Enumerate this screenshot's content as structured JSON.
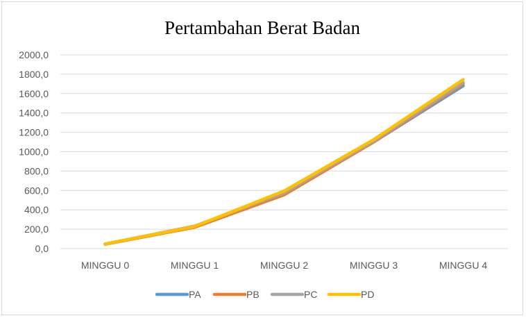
{
  "chart_data": {
    "type": "line",
    "title": "Pertambahan  Berat Badan",
    "categories": [
      "MINGGU 0",
      "MINGGU 1",
      "MINGGU 2",
      "MINGGU 3",
      "MINGGU 4"
    ],
    "y_tick_labels": [
      "0,0",
      "200,0",
      "400,0",
      "600,0",
      "800,0",
      "1000,0",
      "1200,0",
      "1400,0",
      "1600,0",
      "1800,0",
      "2000,0"
    ],
    "ylim": [
      0,
      2000
    ],
    "grid": true,
    "legend_position": "bottom",
    "series": [
      {
        "name": "PA",
        "color": "#5B9BD5",
        "values": [
          45,
          225,
          570,
          1100,
          1680
        ]
      },
      {
        "name": "PB",
        "color": "#ED7D31",
        "values": [
          45,
          220,
          555,
          1100,
          1700
        ]
      },
      {
        "name": "PC",
        "color": "#A5A5A5",
        "values": [
          47,
          232,
          575,
          1110,
          1715
        ]
      },
      {
        "name": "PD",
        "color": "#FFC000",
        "values": [
          48,
          228,
          595,
          1125,
          1745
        ]
      }
    ]
  }
}
